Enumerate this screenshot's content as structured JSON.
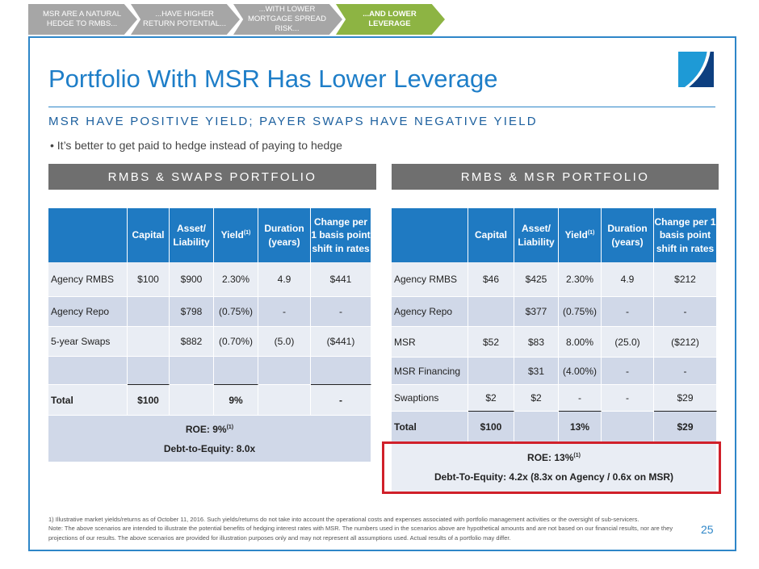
{
  "steps": [
    "MSR ARE A NATURAL HEDGE TO RMBS...",
    "...HAVE HIGHER RETURN POTENTIAL...",
    "...WITH LOWER MORTGAGE SPREAD RISK...",
    "...AND LOWER LEVERAGE"
  ],
  "title": "Portfolio With MSR Has Lower Leverage",
  "subtitle": "MSR HAVE POSITIVE YIELD; PAYER SWAPS HAVE NEGATIVE YIELD",
  "bullet": "• It’s better to get paid to hedge instead of paying to hedge",
  "columns": [
    "Capital",
    "Asset/ Liability",
    "Yield",
    "Duration (years)",
    "Change per 1 basis point shift in rates"
  ],
  "yield_sup": "(1)",
  "left": {
    "header": "RMBS & SWAPS PORTFOLIO",
    "rows": [
      [
        "Agency RMBS",
        "$100",
        "$900",
        "2.30%",
        "4.9",
        "$441"
      ],
      [
        "Agency Repo",
        "",
        "$798",
        "(0.75%)",
        "-",
        "-"
      ],
      [
        "5-year Swaps",
        "",
        "$882",
        "(0.70%)",
        "(5.0)",
        "($441)"
      ],
      [
        "",
        "",
        "",
        "",
        "",
        ""
      ]
    ],
    "total": [
      "Total",
      "$100",
      "",
      "9%",
      "",
      "-"
    ],
    "roe": "ROE:  9%",
    "roe_sup": "(1)",
    "dte": "Debt-to-Equity: 8.0x"
  },
  "right": {
    "header": "RMBS & MSR PORTFOLIO",
    "rows": [
      [
        "Agency RMBS",
        "$46",
        "$425",
        "2.30%",
        "4.9",
        "$212"
      ],
      [
        "Agency Repo",
        "",
        "$377",
        "(0.75%)",
        "-",
        "-"
      ],
      [
        "MSR",
        "$52",
        "$83",
        "8.00%",
        "(25.0)",
        "($212)"
      ],
      [
        "MSR Financing",
        "",
        "$31",
        "(4.00%)",
        "-",
        "-"
      ],
      [
        "Swaptions",
        "$2",
        "$2",
        "-",
        "-",
        "$29"
      ]
    ],
    "total": [
      "Total",
      "$100",
      "",
      "13%",
      "",
      "$29"
    ],
    "roe": "ROE: 13%",
    "roe_sup": "(1)",
    "dte": "Debt-To-Equity:  4.2x   (8.3x on Agency / 0.6x on MSR)"
  },
  "footnote1": "1)      Illustrative market yields/returns as of October 11, 2016. Such yields/returns do not take into account the operational costs and expenses associated with portfolio management activities or the oversight of sub-servicers.",
  "footnote2": "Note: The above scenarios are intended to illustrate the potential benefits of hedging interest rates with MSR. The numbers used in the scenarios above are hypothetical amounts and are not based on our financial results, nor are they projections of our results.  The above scenarios are provided for illustration purposes only and may not represent all assumptions used. Actual results of a portfolio may differ.",
  "page": "25"
}
